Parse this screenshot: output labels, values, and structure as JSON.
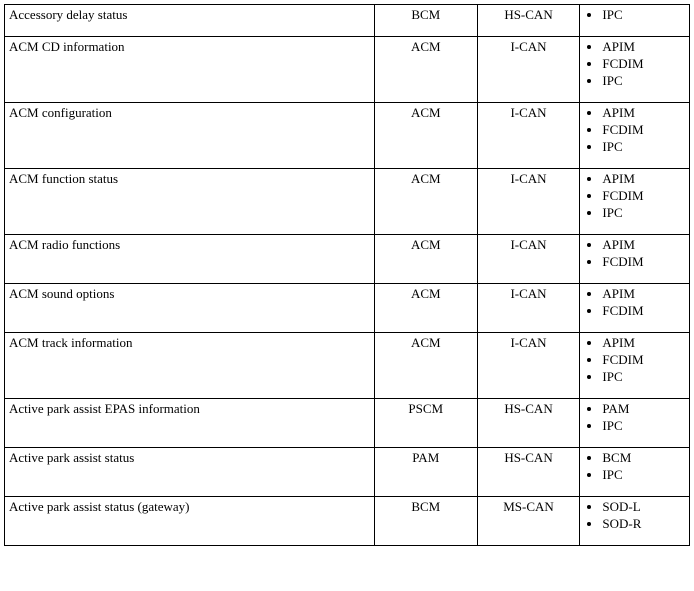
{
  "table": {
    "font_family": "Times New Roman",
    "font_size_pt": 10,
    "border_color": "#000000",
    "background_color": "#ffffff",
    "text_color": "#000000",
    "column_widths_pct": [
      54,
      15,
      15,
      16
    ],
    "column_align": [
      "left",
      "center",
      "center",
      "left"
    ],
    "rows": [
      {
        "message": "Accessory delay status",
        "source": "BCM",
        "bus": "HS-CAN",
        "receivers": [
          "IPC"
        ]
      },
      {
        "message": "ACM CD information",
        "source": "ACM",
        "bus": "I-CAN",
        "receivers": [
          "APIM",
          "FCDIM",
          "IPC"
        ]
      },
      {
        "message": "ACM configuration",
        "source": "ACM",
        "bus": "I-CAN",
        "receivers": [
          "APIM",
          "FCDIM",
          "IPC"
        ]
      },
      {
        "message": "ACM function status",
        "source": "ACM",
        "bus": "I-CAN",
        "receivers": [
          "APIM",
          "FCDIM",
          "IPC"
        ]
      },
      {
        "message": "ACM radio functions",
        "source": "ACM",
        "bus": "I-CAN",
        "receivers": [
          "APIM",
          "FCDIM"
        ]
      },
      {
        "message": "ACM sound options",
        "source": "ACM",
        "bus": "I-CAN",
        "receivers": [
          "APIM",
          "FCDIM"
        ]
      },
      {
        "message": "ACM track information",
        "source": "ACM",
        "bus": "I-CAN",
        "receivers": [
          "APIM",
          "FCDIM",
          "IPC"
        ]
      },
      {
        "message": "Active park assist EPAS information",
        "source": "PSCM",
        "bus": "HS-CAN",
        "receivers": [
          "PAM",
          "IPC"
        ]
      },
      {
        "message": "Active park assist status",
        "source": "PAM",
        "bus": "HS-CAN",
        "receivers": [
          "BCM",
          "IPC"
        ]
      },
      {
        "message": "Active park assist status (gateway)",
        "source": "BCM",
        "bus": "MS-CAN",
        "receivers": [
          "SOD-L",
          "SOD-R"
        ]
      }
    ]
  }
}
